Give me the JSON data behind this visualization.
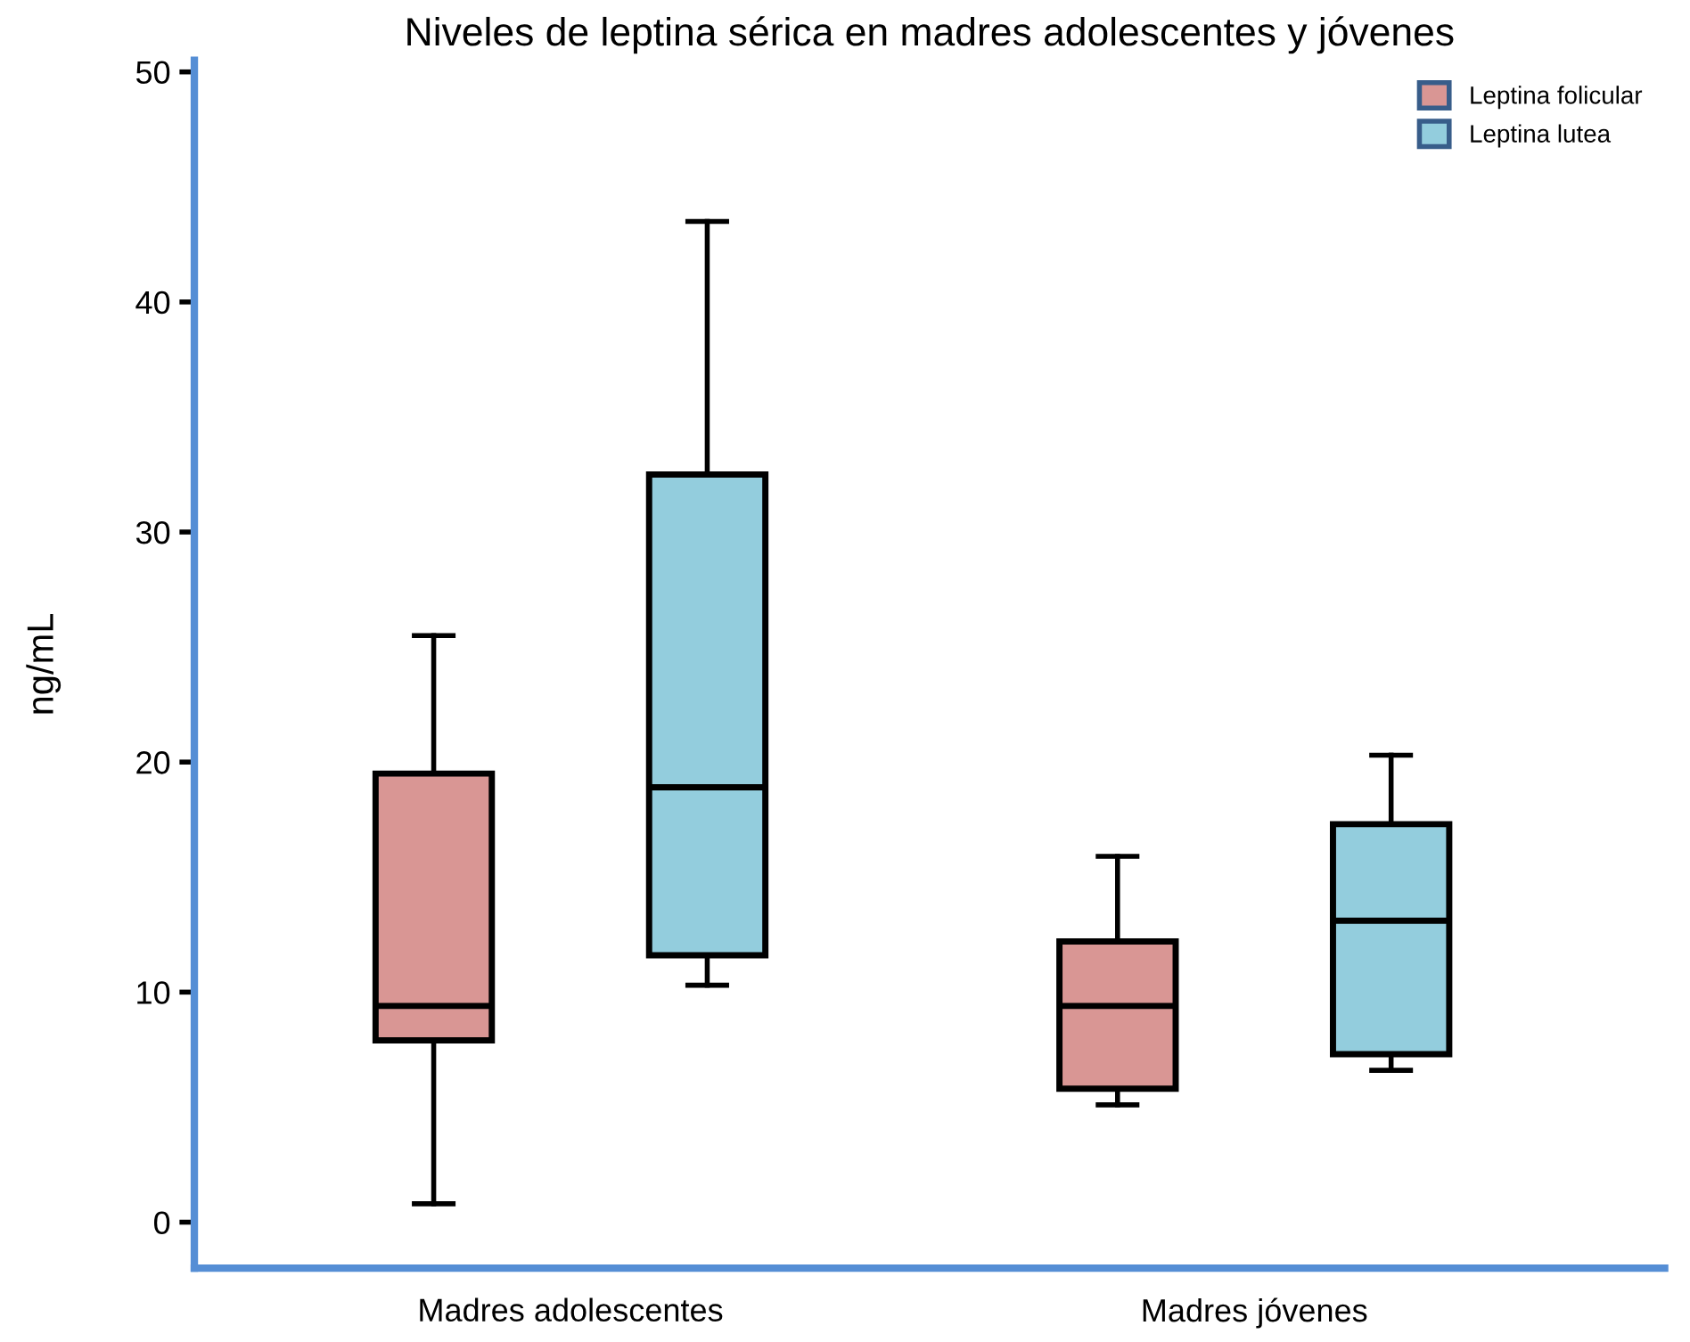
{
  "chart_data": {
    "type": "box",
    "title": "Niveles de leptina sérica en madres adolescentes y jóvenes",
    "ylabel": "ng/mL",
    "categories": [
      "Madres adolescentes",
      "Madres jóvenes"
    ],
    "series": [
      {
        "name": "Leptina folicular",
        "color": "#d99694",
        "boxes": [
          {
            "low": 0.8,
            "q1": 7.9,
            "median": 9.4,
            "q3": 19.5,
            "high": 25.5
          },
          {
            "low": 5.1,
            "q1": 5.8,
            "median": 9.4,
            "q3": 12.2,
            "high": 15.9
          }
        ]
      },
      {
        "name": "Leptina lutea",
        "color": "#93cddd",
        "boxes": [
          {
            "low": 10.3,
            "q1": 11.6,
            "median": 18.9,
            "q3": 32.5,
            "high": 43.5
          },
          {
            "low": 6.6,
            "q1": 7.3,
            "median": 13.1,
            "q3": 17.3,
            "high": 20.3
          }
        ]
      }
    ],
    "ylim": [
      -2,
      50.5
    ],
    "yticks": [
      0,
      10,
      20,
      30,
      40,
      50
    ],
    "grid": false,
    "legend": "top right"
  }
}
